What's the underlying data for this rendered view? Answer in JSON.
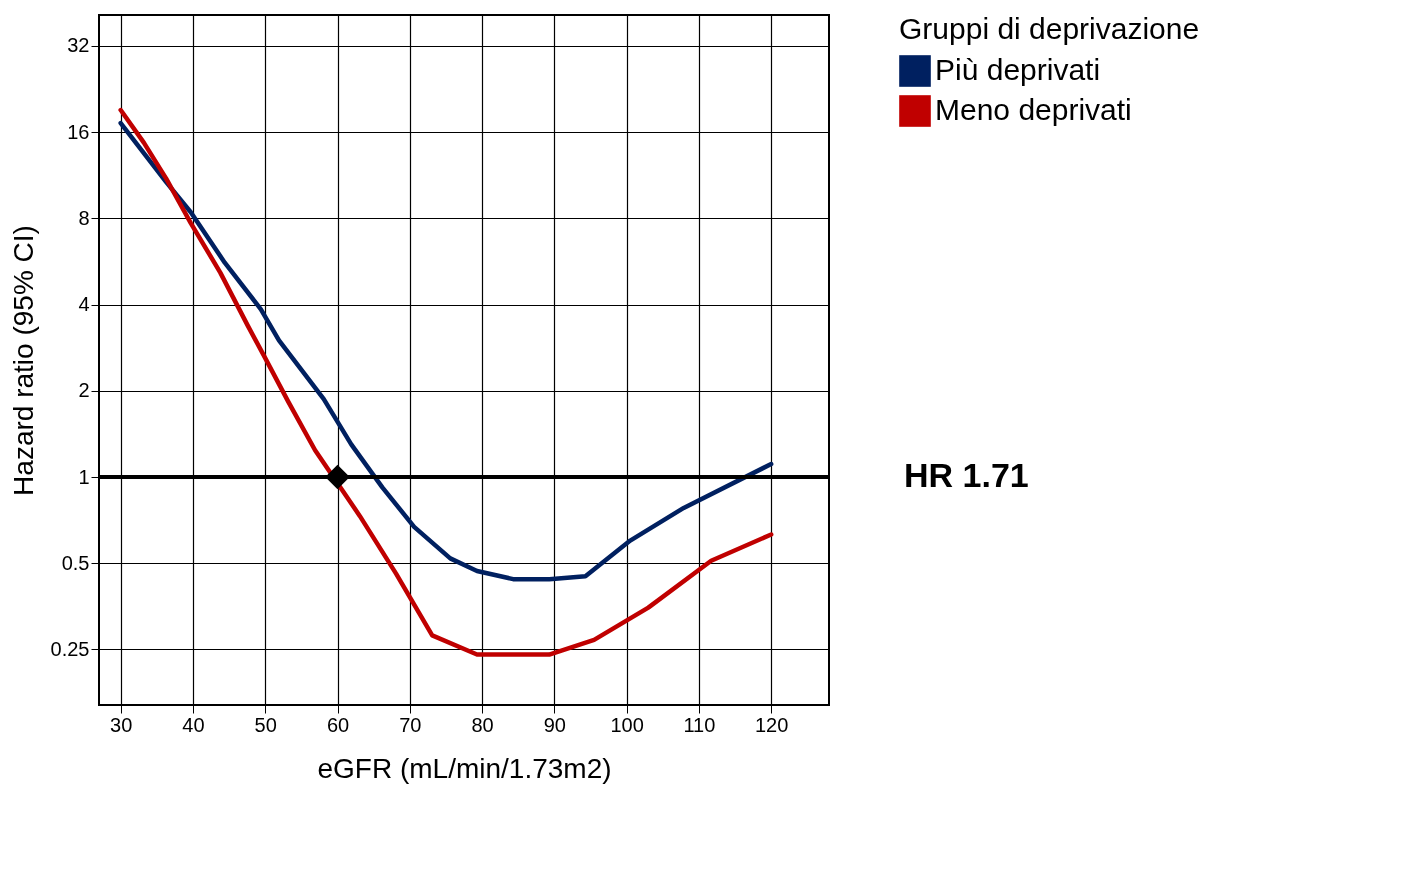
{
  "chart_data": {
    "type": "line",
    "xlabel": "eGFR (mL/min/1.73m2)",
    "ylabel": "Hazard ratio (95% CI)",
    "legend_title": "Gruppi di deprivazione",
    "xlim": [
      27,
      128
    ],
    "xticks": [
      30,
      40,
      50,
      60,
      70,
      80,
      90,
      100,
      110,
      120
    ],
    "ylim": [
      0.16,
      41
    ],
    "yticks": [
      0.25,
      0.5,
      1,
      2,
      4,
      8,
      16,
      32
    ],
    "log": true,
    "grid": true,
    "legend": "right",
    "line_style": "solid",
    "series": [
      {
        "name": "Più deprivati",
        "color": "#002060",
        "x": [
          30,
          36.3,
          39.7,
          44.4,
          49.4,
          51.9,
          58.1,
          61.9,
          66.2,
          70.6,
          75.6,
          79.3,
          84.3,
          89.3,
          94.3,
          100.5,
          107.9,
          120
        ],
        "values": [
          17.2,
          10.7,
          8.4,
          5.6,
          3.85,
          3.0,
          1.87,
          1.3,
          0.92,
          0.67,
          0.52,
          0.47,
          0.44,
          0.44,
          0.45,
          0.6,
          0.78,
          1.11
        ]
      },
      {
        "name": "Meno deprivati",
        "color": "#c00000",
        "x": [
          30,
          33.2,
          36.3,
          39.7,
          43.8,
          47.6,
          50.0,
          53.2,
          56.9,
          63.1,
          68.1,
          73.1,
          79.3,
          84.3,
          89.3,
          95.5,
          103.0,
          111.7,
          120
        ],
        "values": [
          19.1,
          14.7,
          11.0,
          7.7,
          5.16,
          3.37,
          2.6,
          1.83,
          1.24,
          0.73,
          0.46,
          0.28,
          0.24,
          0.24,
          0.24,
          0.27,
          0.35,
          0.51,
          0.63
        ]
      },
      {
        "type": "scatter",
        "color": "#000000",
        "marker": "diamond",
        "x": [
          60
        ],
        "values": [
          1
        ]
      }
    ],
    "ref_lines": [
      {
        "axis": "y",
        "value": 1,
        "label": "HR 1.71",
        "color": "#000000",
        "line_style": "solid"
      }
    ]
  }
}
